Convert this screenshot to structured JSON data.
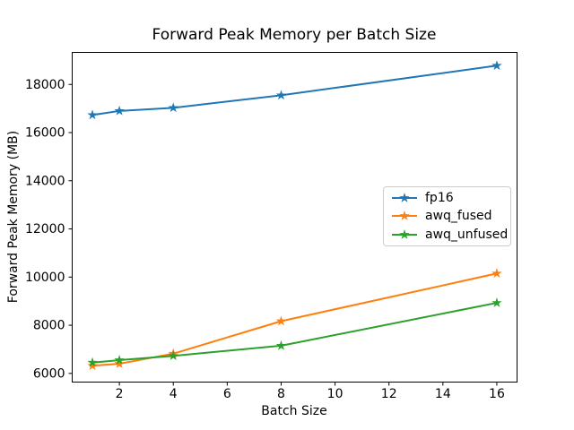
{
  "chart_data": {
    "type": "line",
    "title": "Forward Peak Memory per Batch Size",
    "xlabel": "Batch Size",
    "ylabel": "Forward Peak Memory (MB)",
    "x": [
      1,
      2,
      4,
      8,
      16
    ],
    "series": [
      {
        "name": "fp16",
        "color": "#1f77b4",
        "marker": "star",
        "values": [
          16730,
          16900,
          17030,
          17550,
          18780
        ]
      },
      {
        "name": "awq_fused",
        "color": "#ff7f0e",
        "marker": "star",
        "values": [
          6320,
          6400,
          6820,
          8170,
          10150
        ]
      },
      {
        "name": "awq_unfused",
        "color": "#2ca02c",
        "marker": "star",
        "values": [
          6450,
          6550,
          6730,
          7150,
          8930
        ]
      }
    ],
    "xticks": [
      2,
      4,
      6,
      8,
      10,
      12,
      14,
      16
    ],
    "yticks": [
      6000,
      8000,
      10000,
      12000,
      14000,
      16000,
      18000
    ],
    "xlim": [
      0.25,
      16.75
    ],
    "ylim": [
      5640,
      19330
    ],
    "grid": false,
    "legend_position": "center-right",
    "axis_color": "#000000",
    "background_color": "#ffffff"
  }
}
